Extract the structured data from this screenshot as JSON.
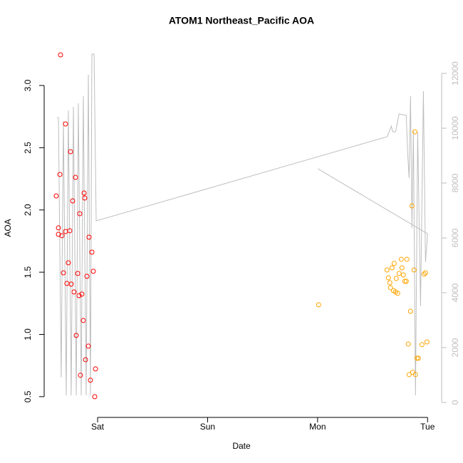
{
  "chart_data": {
    "type": "scatter",
    "title": "ATOM1 Northeast_Pacific AOA",
    "x_label": "Date",
    "y_label": "AOA",
    "xlim": [
      -0.434,
      3.05
    ],
    "ylim": [
      0.379,
      3.332
    ],
    "y2lim": [
      -338,
      13065
    ],
    "xticks": [
      {
        "value": 0,
        "label": "Sat"
      },
      {
        "value": 1,
        "label": "Sun"
      },
      {
        "value": 2,
        "label": "Mon"
      },
      {
        "value": 3,
        "label": "Tue"
      }
    ],
    "yticks": [
      0.5,
      {
        "value": 1,
        "label": "1.0"
      },
      1.5,
      {
        "value": 2,
        "label": "2.0"
      },
      2.5,
      {
        "value": 3,
        "label": "3.0"
      }
    ],
    "y2ticks": [
      0,
      2000,
      4000,
      6000,
      8000,
      10000,
      12000
    ],
    "y2_color": "#bebebe",
    "series": [
      {
        "type": "scatter",
        "color": "#ff0000",
        "x": [
          -0.337,
          -0.292,
          -0.246,
          -0.343,
          -0.201,
          -0.376,
          -0.123,
          -0.117,
          -0.227,
          -0.162,
          -0.356,
          -0.356,
          -0.324,
          -0.292,
          -0.253,
          -0.078,
          -0.052,
          -0.266,
          -0.311,
          -0.181,
          -0.039,
          -0.097,
          -0.279,
          -0.24,
          -0.214,
          -0.169,
          -0.143,
          -0.13,
          -0.194,
          -0.084,
          -0.11,
          -0.156,
          -0.065,
          -0.019,
          -0.026
        ],
        "values": [
          3.246,
          2.691,
          2.468,
          2.285,
          2.262,
          2.113,
          2.136,
          2.096,
          2.073,
          1.97,
          1.856,
          1.804,
          1.793,
          1.827,
          1.833,
          1.781,
          1.661,
          1.576,
          1.495,
          1.49,
          1.507,
          1.467,
          1.41,
          1.404,
          1.341,
          1.312,
          1.324,
          1.112,
          0.992,
          0.906,
          0.797,
          0.672,
          0.632,
          0.723,
          0.5
        ]
      },
      {
        "type": "scatter",
        "color": "#ffa500",
        "x": [
          2.009,
          2.631,
          2.644,
          2.657,
          2.663,
          2.696,
          2.677,
          2.69,
          2.709,
          2.715,
          2.728,
          2.741,
          2.761,
          2.767,
          2.78,
          2.793,
          2.806,
          2.812,
          2.825,
          2.845,
          2.858,
          2.877,
          2.884,
          2.832,
          2.864,
          2.89,
          2.903,
          2.916,
          2.949,
          2.968,
          2.981,
          2.994
        ],
        "values": [
          1.238,
          1.518,
          1.455,
          1.415,
          1.375,
          1.57,
          1.535,
          1.352,
          1.341,
          1.45,
          1.33,
          1.49,
          1.604,
          1.535,
          1.478,
          1.427,
          1.427,
          1.604,
          0.923,
          1.186,
          2.033,
          1.518,
          2.628,
          0.677,
          0.695,
          0.677,
          0.809,
          0.809,
          0.918,
          1.484,
          1.495,
          0.94
        ]
      },
      {
        "type": "line",
        "color": "#bebebe",
        "axis": "y2",
        "x": [
          -0.369,
          -0.356,
          -0.331,
          -0.311,
          -0.285,
          -0.266,
          -0.24,
          -0.22,
          -0.194,
          -0.175,
          -0.149,
          -0.13,
          -0.104,
          -0.084,
          -0.065,
          -0.052,
          -0.032,
          -0.013,
          2.631,
          2.651,
          2.67,
          2.683,
          2.709,
          2.741,
          2.806,
          2.819,
          2.832,
          2.845,
          2.858,
          2.871,
          2.89,
          2.91,
          2.936,
          2.962,
          2.981,
          3.0,
          null,
          2.003,
          3.0
        ],
        "values": [
          10390,
          10390,
          910,
          10260,
          260,
          10650,
          260,
          10780,
          260,
          10910,
          260,
          11170,
          260,
          11950,
          260,
          12700,
          12700,
          6620,
          9690,
          9870,
          10080,
          9870,
          9870,
          10520,
          10470,
          9090,
          8180,
          11170,
          6360,
          9920,
          260,
          9870,
          3510,
          11350,
          5120,
          6150,
          null,
          8520,
          6150
        ]
      }
    ]
  }
}
